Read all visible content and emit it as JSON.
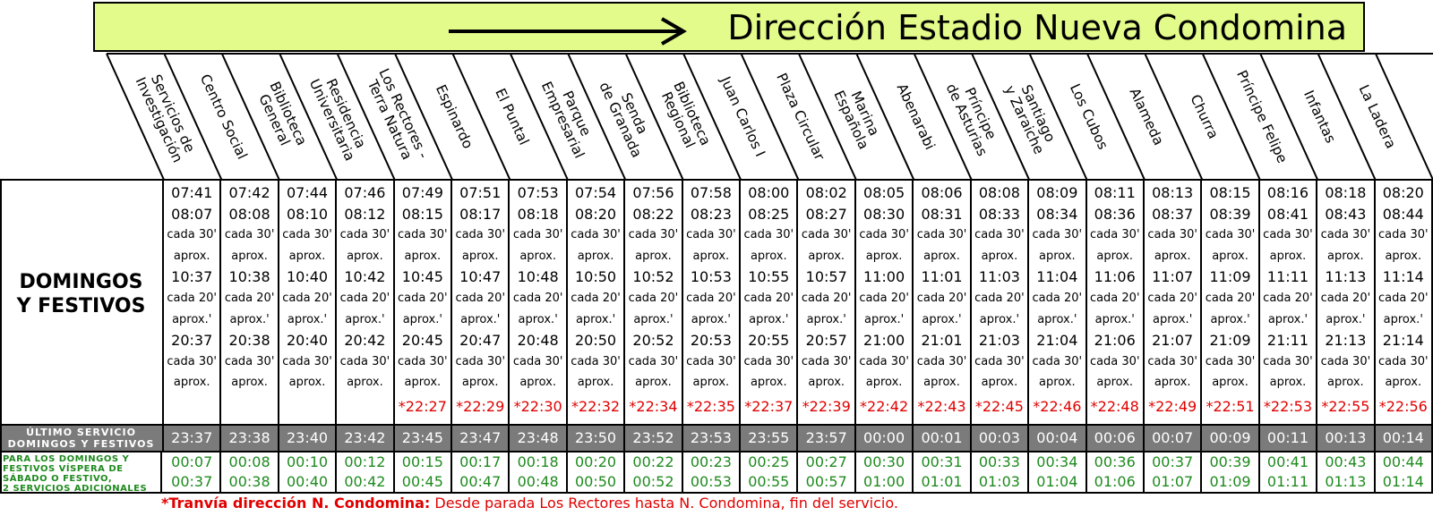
{
  "header": {
    "title": "Dirección Estadio Nueva Condomina",
    "arrow_icon": "right-arrow-icon"
  },
  "row_labels": {
    "days": [
      "DOMINGOS",
      "Y FESTIVOS"
    ],
    "ultimo": [
      "ÚLTIMO SERVICIO",
      "DOMINGOS Y FESTIVOS"
    ],
    "extra": [
      "PARA LOS DOMINGOS Y",
      "FESTIVOS VÍSPERA DE",
      "SÁBADO O FESTIVO,",
      "2 SERVICIOS ADICIONALES"
    ]
  },
  "interval_labels": {
    "cada30": "cada 30'",
    "cada20": "cada 20'",
    "aprox": "aprox.",
    "aprox_quote": "aprox.'"
  },
  "stops": [
    {
      "name": [
        "Servicios de",
        "Investigación"
      ],
      "times": [
        "07:41",
        "08:07",
        "10:37",
        "20:37"
      ],
      "last": "",
      "ultimo": "23:37",
      "extra": [
        "00:07",
        "00:37"
      ]
    },
    {
      "name": [
        "Centro Social"
      ],
      "times": [
        "07:42",
        "08:08",
        "10:38",
        "20:38"
      ],
      "last": "",
      "ultimo": "23:38",
      "extra": [
        "00:08",
        "00:38"
      ]
    },
    {
      "name": [
        "Biblioteca",
        "General"
      ],
      "times": [
        "07:44",
        "08:10",
        "10:40",
        "20:40"
      ],
      "last": "",
      "ultimo": "23:40",
      "extra": [
        "00:10",
        "00:40"
      ]
    },
    {
      "name": [
        "Residencia",
        "Universitaria"
      ],
      "times": [
        "07:46",
        "08:12",
        "10:42",
        "20:42"
      ],
      "last": "",
      "ultimo": "23:42",
      "extra": [
        "00:12",
        "00:42"
      ]
    },
    {
      "name": [
        "Los Rectores -",
        "Terra Natura"
      ],
      "times": [
        "07:49",
        "08:15",
        "10:45",
        "20:45"
      ],
      "last": "*22:27",
      "ultimo": "23:45",
      "extra": [
        "00:15",
        "00:45"
      ]
    },
    {
      "name": [
        "Espinardo"
      ],
      "times": [
        "07:51",
        "08:17",
        "10:47",
        "20:47"
      ],
      "last": "*22:29",
      "ultimo": "23:47",
      "extra": [
        "00:17",
        "00:47"
      ]
    },
    {
      "name": [
        "El Puntal"
      ],
      "times": [
        "07:53",
        "08:18",
        "10:48",
        "20:48"
      ],
      "last": "*22:30",
      "ultimo": "23:48",
      "extra": [
        "00:18",
        "00:48"
      ]
    },
    {
      "name": [
        "Parque",
        "Empresarial"
      ],
      "times": [
        "07:54",
        "08:20",
        "10:50",
        "20:50"
      ],
      "last": "*22:32",
      "ultimo": "23:50",
      "extra": [
        "00:20",
        "00:50"
      ]
    },
    {
      "name": [
        "Senda",
        "de Granada"
      ],
      "times": [
        "07:56",
        "08:22",
        "10:52",
        "20:52"
      ],
      "last": "*22:34",
      "ultimo": "23:52",
      "extra": [
        "00:22",
        "00:52"
      ]
    },
    {
      "name": [
        "Biblioteca",
        "Regional"
      ],
      "times": [
        "07:58",
        "08:23",
        "10:53",
        "20:53"
      ],
      "last": "*22:35",
      "ultimo": "23:53",
      "extra": [
        "00:23",
        "00:53"
      ]
    },
    {
      "name": [
        "Juan Carlos I"
      ],
      "times": [
        "08:00",
        "08:25",
        "10:55",
        "20:55"
      ],
      "last": "*22:37",
      "ultimo": "23:55",
      "extra": [
        "00:25",
        "00:55"
      ]
    },
    {
      "name": [
        "Plaza Circular"
      ],
      "times": [
        "08:02",
        "08:27",
        "10:57",
        "20:57"
      ],
      "last": "*22:39",
      "ultimo": "23:57",
      "extra": [
        "00:27",
        "00:57"
      ]
    },
    {
      "name": [
        "Marina",
        "Española"
      ],
      "times": [
        "08:05",
        "08:30",
        "11:00",
        "21:00"
      ],
      "last": "*22:42",
      "ultimo": "00:00",
      "extra": [
        "00:30",
        "01:00"
      ]
    },
    {
      "name": [
        "Abenarabi"
      ],
      "times": [
        "08:06",
        "08:31",
        "11:01",
        "21:01"
      ],
      "last": "*22:43",
      "ultimo": "00:01",
      "extra": [
        "00:31",
        "01:01"
      ]
    },
    {
      "name": [
        "Príncipe",
        "de Asturias"
      ],
      "times": [
        "08:08",
        "08:33",
        "11:03",
        "21:03"
      ],
      "last": "*22:45",
      "ultimo": "00:03",
      "extra": [
        "00:33",
        "01:03"
      ]
    },
    {
      "name": [
        "Santiago",
        "y Zaraiche"
      ],
      "times": [
        "08:09",
        "08:34",
        "11:04",
        "21:04"
      ],
      "last": "*22:46",
      "ultimo": "00:04",
      "extra": [
        "00:34",
        "01:04"
      ]
    },
    {
      "name": [
        "Los Cubos"
      ],
      "times": [
        "08:11",
        "08:36",
        "11:06",
        "21:06"
      ],
      "last": "*22:48",
      "ultimo": "00:06",
      "extra": [
        "00:36",
        "01:06"
      ]
    },
    {
      "name": [
        "Alameda"
      ],
      "times": [
        "08:13",
        "08:37",
        "11:07",
        "21:07"
      ],
      "last": "*22:49",
      "ultimo": "00:07",
      "extra": [
        "00:37",
        "01:07"
      ]
    },
    {
      "name": [
        "Churra"
      ],
      "times": [
        "08:15",
        "08:39",
        "11:09",
        "21:09"
      ],
      "last": "*22:51",
      "ultimo": "00:09",
      "extra": [
        "00:39",
        "01:09"
      ]
    },
    {
      "name": [
        "Príncipe Felipe"
      ],
      "times": [
        "08:16",
        "08:41",
        "11:11",
        "21:11"
      ],
      "last": "*22:53",
      "ultimo": "00:11",
      "extra": [
        "00:41",
        "01:11"
      ]
    },
    {
      "name": [
        "Infantas"
      ],
      "times": [
        "08:18",
        "08:43",
        "11:13",
        "21:13"
      ],
      "last": "*22:55",
      "ultimo": "00:13",
      "extra": [
        "00:43",
        "01:13"
      ]
    },
    {
      "name": [
        "La Ladera"
      ],
      "times": [
        "08:20",
        "08:44",
        "11:14",
        "21:14"
      ],
      "last": "*22:56",
      "ultimo": "00:14",
      "extra": [
        "00:44",
        "01:14"
      ]
    }
  ],
  "footnote": {
    "bold": "*Tranvía dirección N. Condomina:",
    "text": " Desde parada Los Rectores hasta N. Condomina, fin del servicio."
  },
  "colors": {
    "banner": "#e3fb8a",
    "last_service_red": "#e00000",
    "ultimo_bg": "#7b7b7b",
    "extra_green": "#1e8a1e"
  }
}
